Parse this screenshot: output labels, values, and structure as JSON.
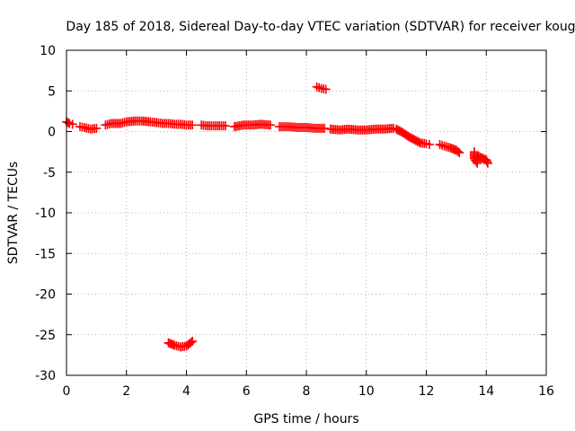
{
  "chart_data": {
    "type": "scatter",
    "title": "Day 185 of 2018, Sidereal Day-to-day VTEC variation (SDTVAR) for receiver koug",
    "xlabel": "GPS time / hours",
    "ylabel": "SDTVAR / TECUs",
    "xlim": [
      0,
      16
    ],
    "ylim": [
      -30,
      10
    ],
    "x_ticks": [
      0,
      2,
      4,
      6,
      8,
      10,
      12,
      14,
      16
    ],
    "y_ticks": [
      10,
      5,
      0,
      -5,
      -10,
      -15,
      -20,
      -25,
      -30
    ],
    "grid": true,
    "marker": "plus",
    "series": [
      {
        "name": "SDTVAR",
        "color": "#ff0000",
        "segments": [
          {
            "x": [
              0.0,
              0.1,
              0.2
            ],
            "y": [
              1.2,
              1.0,
              0.9
            ]
          },
          {
            "x": [
              0.45,
              0.6,
              0.8,
              1.0
            ],
            "y": [
              0.6,
              0.5,
              0.3,
              0.4
            ]
          },
          {
            "x": [
              1.3,
              1.5,
              1.8,
              2.0,
              2.3,
              2.5,
              2.8,
              3.0,
              3.2,
              3.4,
              3.6,
              3.8,
              4.0,
              4.2
            ],
            "y": [
              0.8,
              1.0,
              1.0,
              1.2,
              1.3,
              1.3,
              1.2,
              1.1,
              1.0,
              1.0,
              0.9,
              0.9,
              0.8,
              0.8
            ]
          },
          {
            "x": [
              4.5,
              4.7,
              4.9,
              5.1,
              5.3
            ],
            "y": [
              0.8,
              0.7,
              0.7,
              0.7,
              0.7
            ]
          },
          {
            "x": [
              5.6,
              5.9,
              6.2,
              6.5,
              6.8
            ],
            "y": [
              0.6,
              0.8,
              0.8,
              0.9,
              0.8
            ]
          },
          {
            "x": [
              7.1,
              7.4,
              7.7,
              8.0,
              8.3,
              8.6
            ],
            "y": [
              0.6,
              0.6,
              0.5,
              0.5,
              0.4,
              0.4
            ]
          },
          {
            "x": [
              8.8,
              9.1,
              9.4,
              9.7,
              10.0,
              10.3,
              10.6,
              10.9,
              11.0,
              11.2,
              11.4,
              11.6,
              11.8,
              12.0,
              12.1
            ],
            "y": [
              0.3,
              0.2,
              0.3,
              0.2,
              0.2,
              0.3,
              0.3,
              0.4,
              0.3,
              -0.1,
              -0.6,
              -1.0,
              -1.4,
              -1.5,
              -1.6
            ]
          },
          {
            "x": [
              12.45,
              12.6,
              12.8,
              13.0,
              13.1
            ],
            "y": [
              -1.6,
              -1.8,
              -2.0,
              -2.3,
              -2.6
            ]
          },
          {
            "x": [
              8.35,
              8.5,
              8.65
            ],
            "y": [
              5.5,
              5.3,
              5.2
            ]
          },
          {
            "x": [
              13.6,
              13.6,
              13.7,
              13.7,
              14.0,
              14.05
            ],
            "y": [
              -2.5,
              -3.3,
              -3.9,
              -3.0,
              -3.5,
              -3.9
            ]
          },
          {
            "x": [
              3.4,
              3.6,
              3.8,
              4.0,
              4.2
            ],
            "y": [
              -26.0,
              -26.3,
              -26.5,
              -26.4,
              -25.8
            ]
          }
        ]
      }
    ]
  }
}
